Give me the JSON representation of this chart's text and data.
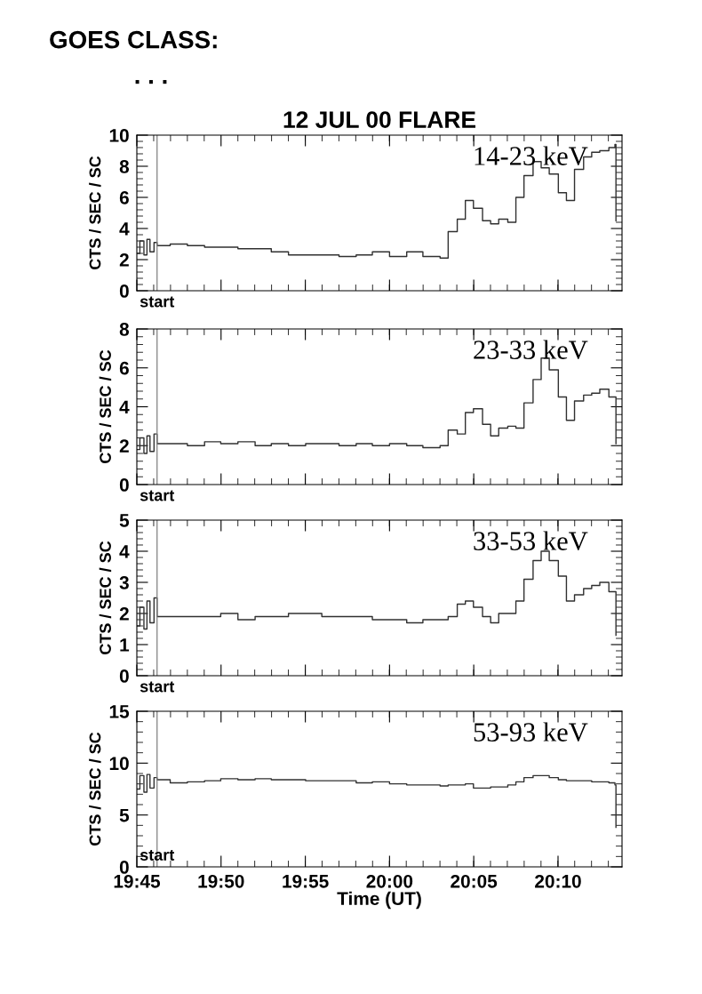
{
  "chart_data": [
    {
      "type": "step",
      "title": "12 JUL 00 FLARE",
      "annotations": [
        "GOES CLASS:",
        ". . ."
      ],
      "ylabel": "CTS / SEC / SC",
      "tick_labels": "y",
      "x": [
        19.75,
        19.753,
        19.757,
        19.76,
        19.763,
        19.767,
        19.77,
        19.783,
        19.8,
        19.817,
        19.833,
        19.85,
        19.867,
        19.883,
        19.9,
        19.917,
        19.933,
        19.95,
        19.967,
        19.983,
        20.0,
        20.017,
        20.033,
        20.05,
        20.058,
        20.067,
        20.075,
        20.083,
        20.092,
        20.1,
        20.108,
        20.117,
        20.125,
        20.133,
        20.142,
        20.15,
        20.158,
        20.167,
        20.175,
        20.183,
        20.192,
        20.2,
        20.208,
        20.217,
        20.223,
        20.224
      ],
      "series": [
        {
          "name": "14-23 keV",
          "color": "#303030",
          "values": [
            2.4,
            3.2,
            2.3,
            3.3,
            2.5,
            3.1,
            2.9,
            3.0,
            2.9,
            2.8,
            2.8,
            2.7,
            2.7,
            2.5,
            2.3,
            2.3,
            2.3,
            2.2,
            2.3,
            2.5,
            2.2,
            2.5,
            2.2,
            2.1,
            3.8,
            4.6,
            5.8,
            5.3,
            4.5,
            4.3,
            4.6,
            4.4,
            6.0,
            7.4,
            8.3,
            7.9,
            7.5,
            6.3,
            5.8,
            7.8,
            8.6,
            8.9,
            9.0,
            9.2,
            9.4,
            4.5
          ]
        }
      ],
      "xlim": [
        19.75,
        20.23
      ],
      "xticks": [
        {
          "value": 19.75,
          "label": null
        },
        {
          "value": 19.8333,
          "label": null
        },
        {
          "value": 19.9167,
          "label": null
        },
        {
          "value": 20.0,
          "label": null
        },
        {
          "value": 20.0833,
          "label": null
        },
        {
          "value": 20.1667,
          "label": null
        }
      ],
      "ylim": [
        0,
        10
      ],
      "yticks": [
        0,
        2,
        4,
        6,
        8,
        10
      ],
      "ref_lines": [
        {
          "axis": "x",
          "value": 19.77,
          "label": "start",
          "color": "#808080"
        }
      ]
    },
    {
      "type": "step",
      "ylabel": "CTS / SEC / SC",
      "tick_labels": "y",
      "x": [
        19.75,
        19.753,
        19.757,
        19.76,
        19.763,
        19.767,
        19.77,
        19.783,
        19.8,
        19.817,
        19.833,
        19.85,
        19.867,
        19.883,
        19.9,
        19.917,
        19.933,
        19.95,
        19.967,
        19.983,
        20.0,
        20.017,
        20.033,
        20.05,
        20.058,
        20.067,
        20.075,
        20.083,
        20.092,
        20.1,
        20.108,
        20.117,
        20.125,
        20.133,
        20.142,
        20.15,
        20.158,
        20.167,
        20.175,
        20.183,
        20.192,
        20.2,
        20.208,
        20.217,
        20.223,
        20.224
      ],
      "series": [
        {
          "name": "23-33 keV",
          "color": "#303030",
          "values": [
            1.8,
            2.4,
            1.6,
            2.5,
            1.7,
            2.6,
            2.1,
            2.1,
            2.0,
            2.2,
            2.1,
            2.2,
            2.0,
            2.1,
            2.0,
            2.1,
            2.1,
            2.0,
            2.1,
            2.0,
            2.1,
            2.0,
            1.9,
            2.0,
            2.8,
            2.6,
            3.7,
            3.9,
            3.1,
            2.5,
            2.9,
            3.0,
            2.9,
            4.2,
            5.4,
            6.5,
            5.9,
            4.5,
            3.3,
            4.3,
            4.6,
            4.7,
            4.9,
            4.5,
            4.5,
            2.1
          ]
        }
      ],
      "xlim": [
        19.75,
        20.23
      ],
      "xticks": [
        {
          "value": 19.75,
          "label": null
        },
        {
          "value": 19.8333,
          "label": null
        },
        {
          "value": 19.9167,
          "label": null
        },
        {
          "value": 20.0,
          "label": null
        },
        {
          "value": 20.0833,
          "label": null
        },
        {
          "value": 20.1667,
          "label": null
        }
      ],
      "ylim": [
        0,
        8
      ],
      "yticks": [
        0,
        2,
        4,
        6,
        8
      ],
      "ref_lines": [
        {
          "axis": "x",
          "value": 19.77,
          "label": "start",
          "color": "#808080"
        }
      ]
    },
    {
      "type": "step",
      "ylabel": "CTS / SEC / SC",
      "tick_labels": "y",
      "x": [
        19.75,
        19.753,
        19.757,
        19.76,
        19.763,
        19.767,
        19.77,
        19.783,
        19.8,
        19.817,
        19.833,
        19.85,
        19.867,
        19.883,
        19.9,
        19.917,
        19.933,
        19.95,
        19.967,
        19.983,
        20.0,
        20.017,
        20.033,
        20.05,
        20.058,
        20.067,
        20.075,
        20.083,
        20.092,
        20.1,
        20.108,
        20.117,
        20.125,
        20.133,
        20.142,
        20.15,
        20.158,
        20.167,
        20.175,
        20.183,
        20.192,
        20.2,
        20.208,
        20.217,
        20.223,
        20.224
      ],
      "series": [
        {
          "name": "33-53 keV",
          "color": "#303030",
          "values": [
            1.6,
            2.2,
            1.5,
            2.4,
            1.7,
            2.5,
            1.9,
            1.9,
            1.9,
            1.9,
            2.0,
            1.8,
            1.9,
            1.9,
            2.0,
            2.0,
            1.9,
            1.9,
            1.9,
            1.8,
            1.8,
            1.7,
            1.8,
            1.8,
            1.9,
            2.3,
            2.4,
            2.2,
            1.9,
            1.7,
            2.0,
            2.0,
            2.4,
            3.1,
            3.7,
            4.0,
            3.7,
            3.2,
            2.4,
            2.6,
            2.8,
            2.9,
            3.0,
            2.7,
            2.7,
            1.3
          ]
        }
      ],
      "xlim": [
        19.75,
        20.23
      ],
      "xticks": [
        {
          "value": 19.75,
          "label": null
        },
        {
          "value": 19.8333,
          "label": null
        },
        {
          "value": 19.9167,
          "label": null
        },
        {
          "value": 20.0,
          "label": null
        },
        {
          "value": 20.0833,
          "label": null
        },
        {
          "value": 20.1667,
          "label": null
        }
      ],
      "ylim": [
        0,
        5
      ],
      "yticks": [
        0,
        1,
        2,
        3,
        4,
        5
      ],
      "ref_lines": [
        {
          "axis": "x",
          "value": 19.77,
          "label": "start",
          "color": "#808080"
        }
      ]
    },
    {
      "type": "step",
      "ylabel": "CTS / SEC / SC",
      "xlabel": "Time (UT)",
      "x": [
        19.75,
        19.753,
        19.757,
        19.76,
        19.763,
        19.767,
        19.77,
        19.783,
        19.8,
        19.817,
        19.833,
        19.85,
        19.867,
        19.883,
        19.9,
        19.917,
        19.933,
        19.95,
        19.967,
        19.983,
        20.0,
        20.017,
        20.033,
        20.05,
        20.058,
        20.067,
        20.075,
        20.083,
        20.092,
        20.1,
        20.108,
        20.117,
        20.125,
        20.133,
        20.142,
        20.15,
        20.158,
        20.167,
        20.175,
        20.183,
        20.192,
        20.2,
        20.208,
        20.217,
        20.223,
        20.224
      ],
      "series": [
        {
          "name": "53-93 keV",
          "color": "#303030",
          "values": [
            7.5,
            8.8,
            7.2,
            8.9,
            7.6,
            8.6,
            8.4,
            8.1,
            8.2,
            8.3,
            8.5,
            8.4,
            8.5,
            8.4,
            8.4,
            8.3,
            8.3,
            8.3,
            8.1,
            8.2,
            8.0,
            7.9,
            7.9,
            7.8,
            7.9,
            7.9,
            8.0,
            7.6,
            7.6,
            7.7,
            7.7,
            7.9,
            8.2,
            8.6,
            8.8,
            8.8,
            8.6,
            8.4,
            8.3,
            8.3,
            8.3,
            8.2,
            8.2,
            8.1,
            7.9,
            3.8
          ]
        }
      ],
      "xlim": [
        19.75,
        20.23
      ],
      "xticks": [
        {
          "value": 19.75,
          "label": "19:45"
        },
        {
          "value": 19.8333,
          "label": "19:50"
        },
        {
          "value": 19.9167,
          "label": "19:55"
        },
        {
          "value": 20.0,
          "label": "20:00"
        },
        {
          "value": 20.0833,
          "label": "20:05"
        },
        {
          "value": 20.1667,
          "label": "20:10"
        }
      ],
      "ylim": [
        0,
        15
      ],
      "yticks": [
        0,
        5,
        10,
        15
      ],
      "ref_lines": [
        {
          "axis": "x",
          "value": 19.77,
          "label": "start",
          "color": "#808080"
        }
      ]
    }
  ]
}
